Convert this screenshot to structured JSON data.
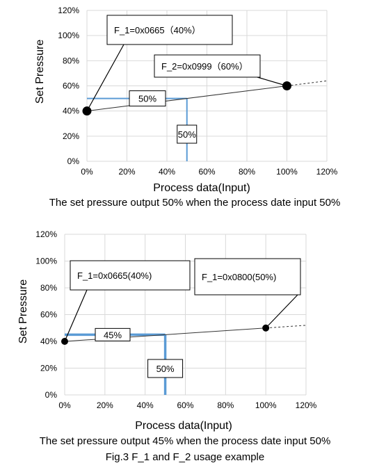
{
  "figure_title": "Fig.3 F_1 and F_2 usage example",
  "chart_data": [
    {
      "type": "line",
      "caption": "The set pressure output 50% when the process date input 50%",
      "xlabel": "Process data(Input)",
      "ylabel": "Set Pressure",
      "xlim": [
        0,
        120
      ],
      "ylim": [
        0,
        120
      ],
      "x_ticks": [
        "0%",
        "20%",
        "40%",
        "60%",
        "80%",
        "100%",
        "120%"
      ],
      "y_ticks": [
        "0%",
        "20%",
        "40%",
        "60%",
        "80%",
        "100%",
        "120%"
      ],
      "grid": true,
      "series": [
        {
          "x": [
            0,
            100
          ],
          "y": [
            40,
            60
          ],
          "style": "solid"
        },
        {
          "x": [
            100,
            120
          ],
          "y": [
            60,
            64
          ],
          "style": "dashed"
        }
      ],
      "points": [
        {
          "x": 0,
          "y": 40,
          "label": "F_1=0x0665（40%）"
        },
        {
          "x": 100,
          "y": 60,
          "label": "F_2=0x0999（60%）"
        }
      ],
      "guide": {
        "x": 50,
        "y": 50,
        "x_label": "50%",
        "y_label": "50%"
      }
    },
    {
      "type": "line",
      "caption": "The set pressure output 45% when the process date input 50%",
      "xlabel": "Process data(Input)",
      "ylabel": "Set Pressure",
      "xlim": [
        0,
        120
      ],
      "ylim": [
        0,
        120
      ],
      "x_ticks": [
        "0%",
        "20%",
        "40%",
        "60%",
        "80%",
        "100%",
        "120%"
      ],
      "y_ticks": [
        "0%",
        "20%",
        "40%",
        "60%",
        "80%",
        "100%",
        "120%"
      ],
      "grid": true,
      "series": [
        {
          "x": [
            0,
            100
          ],
          "y": [
            40,
            50
          ],
          "style": "solid"
        },
        {
          "x": [
            100,
            120
          ],
          "y": [
            50,
            52
          ],
          "style": "dashed"
        }
      ],
      "points": [
        {
          "x": 0,
          "y": 40,
          "label": "F_1=0x0665(40%)"
        },
        {
          "x": 100,
          "y": 50,
          "label": "F_1=0x0800(50%)"
        }
      ],
      "guide": {
        "x": 50,
        "y": 45,
        "x_label": "50%",
        "y_label": "45%"
      }
    }
  ]
}
